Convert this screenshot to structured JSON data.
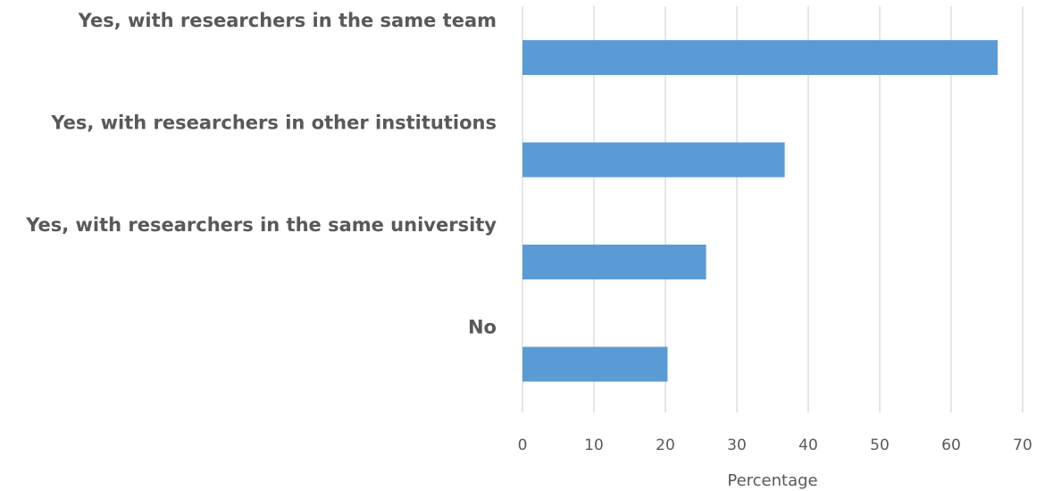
{
  "chart_data": {
    "type": "bar",
    "orientation": "horizontal",
    "categories": [
      "Yes, with researchers in the same team",
      "Yes, with researchers in other institutions",
      "Yes, with researchers in the same university",
      "No"
    ],
    "values": [
      66.5,
      36.7,
      25.7,
      20.3
    ],
    "xlabel": "Percentage",
    "ylabel": "",
    "xlim": [
      0,
      70
    ],
    "xticks": [
      "0",
      "10",
      "20",
      "30",
      "40",
      "50",
      "60",
      "70"
    ],
    "grid": "vertical",
    "legend": "none",
    "bar_color": "#5b9bd5"
  }
}
